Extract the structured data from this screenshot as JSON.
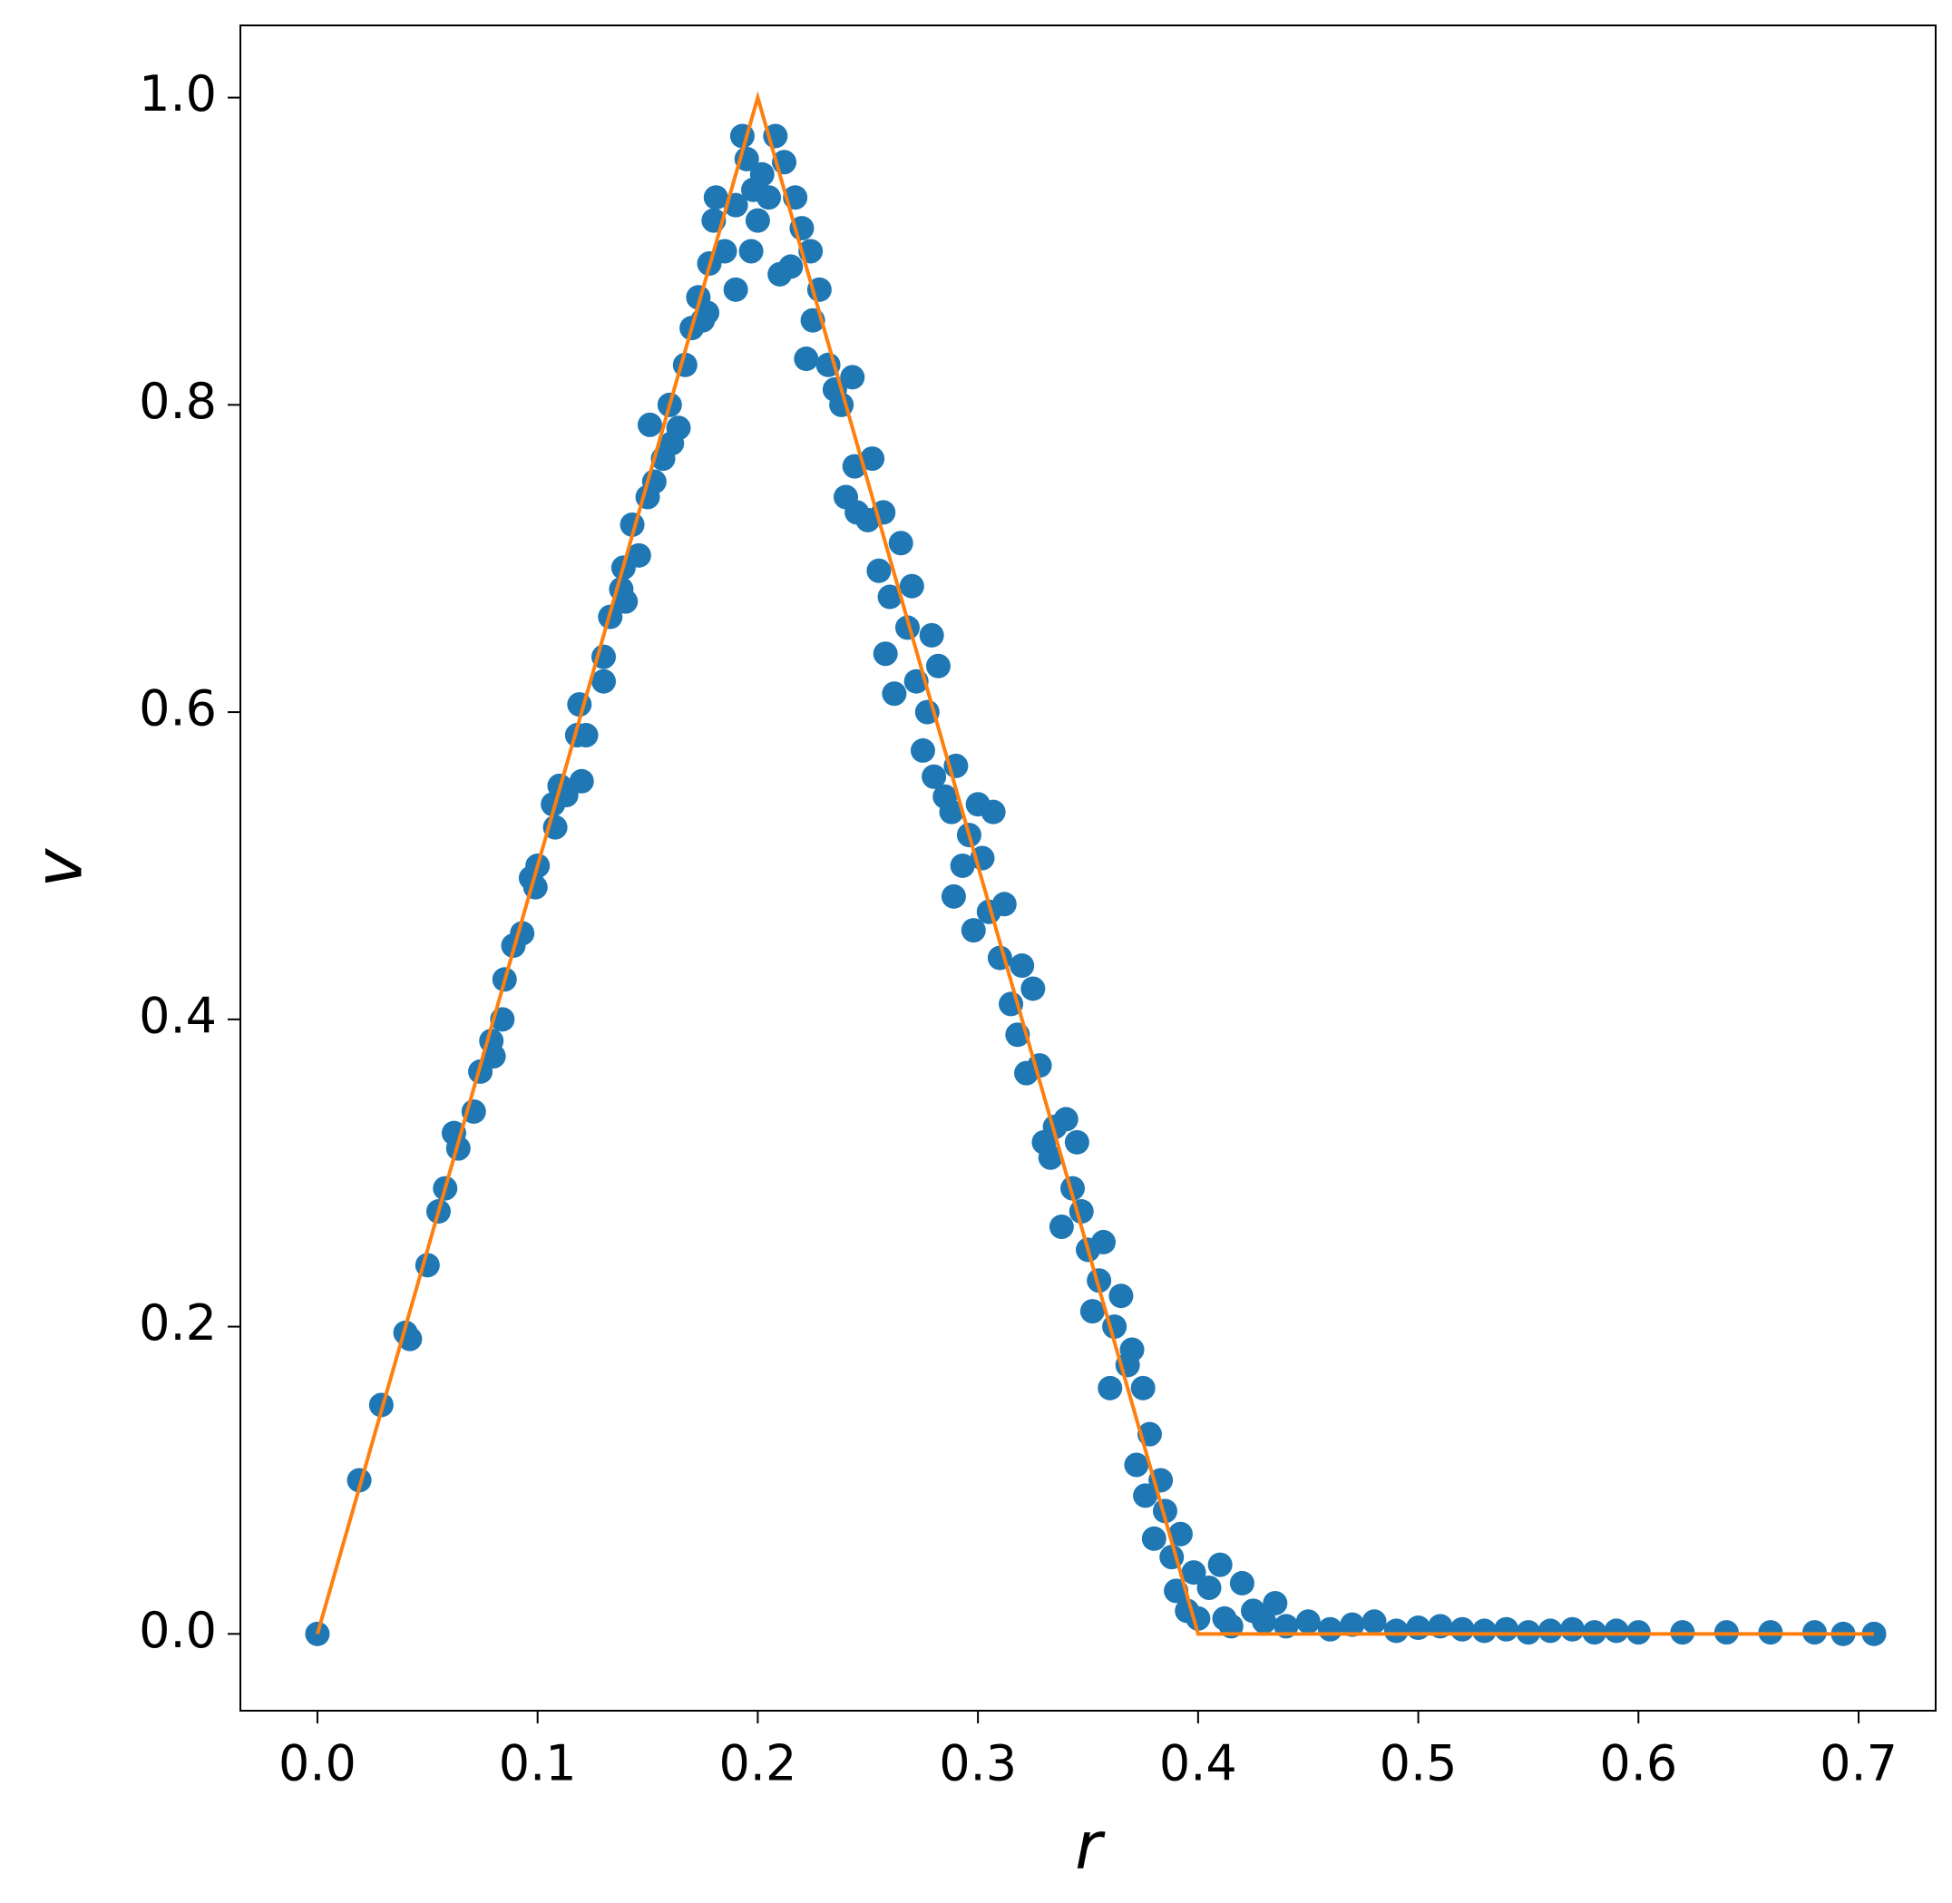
{
  "chart_data": {
    "type": "scatter",
    "x_label": "r",
    "y_label": "v",
    "xlim": [
      -0.035,
      0.735
    ],
    "ylim": [
      -0.05,
      1.047
    ],
    "xticks": [
      {
        "value": 0,
        "label": "0.0"
      },
      0.1,
      0.2,
      0.3,
      0.4,
      0.5,
      0.6,
      0.7
    ],
    "yticks": [
      {
        "value": 0,
        "label": "0.0"
      },
      0.2,
      0.4,
      0.6,
      0.8,
      {
        "value": 1,
        "label": "1.0"
      }
    ],
    "series": [
      {
        "type": "scatter",
        "color": "#1f77b4",
        "x": [
          0,
          0.019,
          0.029,
          0.04,
          0.042,
          0.05,
          0.055,
          0.058,
          0.062,
          0.064,
          0.071,
          0.074,
          0.079,
          0.08,
          0.084,
          0.085,
          0.089,
          0.093,
          0.097,
          0.099,
          0.1,
          0.107,
          0.108,
          0.11,
          0.113,
          0.118,
          0.119,
          0.122,
          0.12,
          0.13,
          0.13,
          0.133,
          0.138,
          0.139,
          0.14,
          0.143,
          0.146,
          0.15,
          0.151,
          0.153,
          0.157,
          0.16,
          0.161,
          0.164,
          0.167,
          0.17,
          0.173,
          0.175,
          0.177,
          0.178,
          0.18,
          0.181,
          0.185,
          0.19,
          0.19,
          0.193,
          0.195,
          0.197,
          0.198,
          0.2,
          0.202,
          0.205,
          0.208,
          0.21,
          0.212,
          0.215,
          0.217,
          0.22,
          0.222,
          0.224,
          0.225,
          0.228,
          0.232,
          0.235,
          0.238,
          0.24,
          0.243,
          0.244,
          0.245,
          0.25,
          0.252,
          0.255,
          0.257,
          0.258,
          0.26,
          0.262,
          0.265,
          0.268,
          0.27,
          0.272,
          0.275,
          0.277,
          0.279,
          0.28,
          0.282,
          0.285,
          0.288,
          0.29,
          0.289,
          0.293,
          0.296,
          0.298,
          0.3,
          0.302,
          0.305,
          0.307,
          0.31,
          0.312,
          0.315,
          0.318,
          0.32,
          0.322,
          0.325,
          0.328,
          0.33,
          0.333,
          0.335,
          0.338,
          0.34,
          0.343,
          0.345,
          0.347,
          0.35,
          0.352,
          0.355,
          0.357,
          0.36,
          0.362,
          0.365,
          0.368,
          0.37,
          0.372,
          0.375,
          0.376,
          0.378,
          0.38,
          0.383,
          0.385,
          0.388,
          0.39,
          0.392,
          0.395,
          0.398,
          0.4,
          0.405,
          0.41,
          0.412,
          0.415,
          0.42,
          0.425,
          0.43,
          0.435,
          0.44,
          0.45,
          0.46,
          0.47,
          0.48,
          0.49,
          0.5,
          0.51,
          0.52,
          0.53,
          0.54,
          0.55,
          0.56,
          0.57,
          0.58,
          0.59,
          0.6,
          0.62,
          0.64,
          0.66,
          0.68,
          0.693,
          0.707
        ],
        "values": [
          0,
          0.1,
          0.149,
          0.196,
          0.192,
          0.24,
          0.275,
          0.29,
          0.326,
          0.316,
          0.34,
          0.366,
          0.386,
          0.376,
          0.4,
          0.426,
          0.448,
          0.456,
          0.492,
          0.486,
          0.5,
          0.54,
          0.525,
          0.552,
          0.546,
          0.585,
          0.605,
          0.585,
          0.555,
          0.62,
          0.636,
          0.662,
          0.68,
          0.694,
          0.672,
          0.722,
          0.702,
          0.74,
          0.787,
          0.75,
          0.765,
          0.8,
          0.775,
          0.785,
          0.826,
          0.85,
          0.87,
          0.855,
          0.86,
          0.892,
          0.92,
          0.935,
          0.9,
          0.875,
          0.93,
          0.975,
          0.96,
          0.9,
          0.94,
          0.92,
          0.95,
          0.935,
          0.975,
          0.885,
          0.958,
          0.89,
          0.935,
          0.915,
          0.83,
          0.9,
          0.855,
          0.875,
          0.826,
          0.81,
          0.8,
          0.74,
          0.818,
          0.76,
          0.73,
          0.725,
          0.765,
          0.692,
          0.73,
          0.638,
          0.675,
          0.612,
          0.71,
          0.655,
          0.682,
          0.62,
          0.575,
          0.6,
          0.65,
          0.558,
          0.63,
          0.545,
          0.535,
          0.565,
          0.48,
          0.5,
          0.52,
          0.458,
          0.54,
          0.505,
          0.47,
          0.535,
          0.44,
          0.475,
          0.41,
          0.39,
          0.435,
          0.365,
          0.42,
          0.37,
          0.32,
          0.31,
          0.33,
          0.265,
          0.335,
          0.29,
          0.32,
          0.275,
          0.25,
          0.21,
          0.23,
          0.255,
          0.16,
          0.2,
          0.22,
          0.175,
          0.185,
          0.11,
          0.16,
          0.09,
          0.13,
          0.062,
          0.1,
          0.08,
          0.05,
          0.028,
          0.065,
          0.015,
          0.04,
          0.01,
          0.03,
          0.045,
          0.01,
          0.005,
          0.033,
          0.015,
          0.008,
          0.02,
          0.005,
          0.008,
          0.003,
          0.006,
          0.008,
          0.002,
          0.004,
          0.005,
          0.003,
          0.002,
          0.003,
          0.001,
          0.002,
          0.003,
          0.001,
          0.002,
          0.001,
          0.001,
          0.001,
          0.001,
          0.001,
          0,
          0
        ]
      },
      {
        "type": "line",
        "color": "#ff7f0e",
        "x": [
          0,
          0.2,
          0.4,
          0.707
        ],
        "values": [
          0,
          1,
          0,
          0
        ]
      }
    ]
  }
}
